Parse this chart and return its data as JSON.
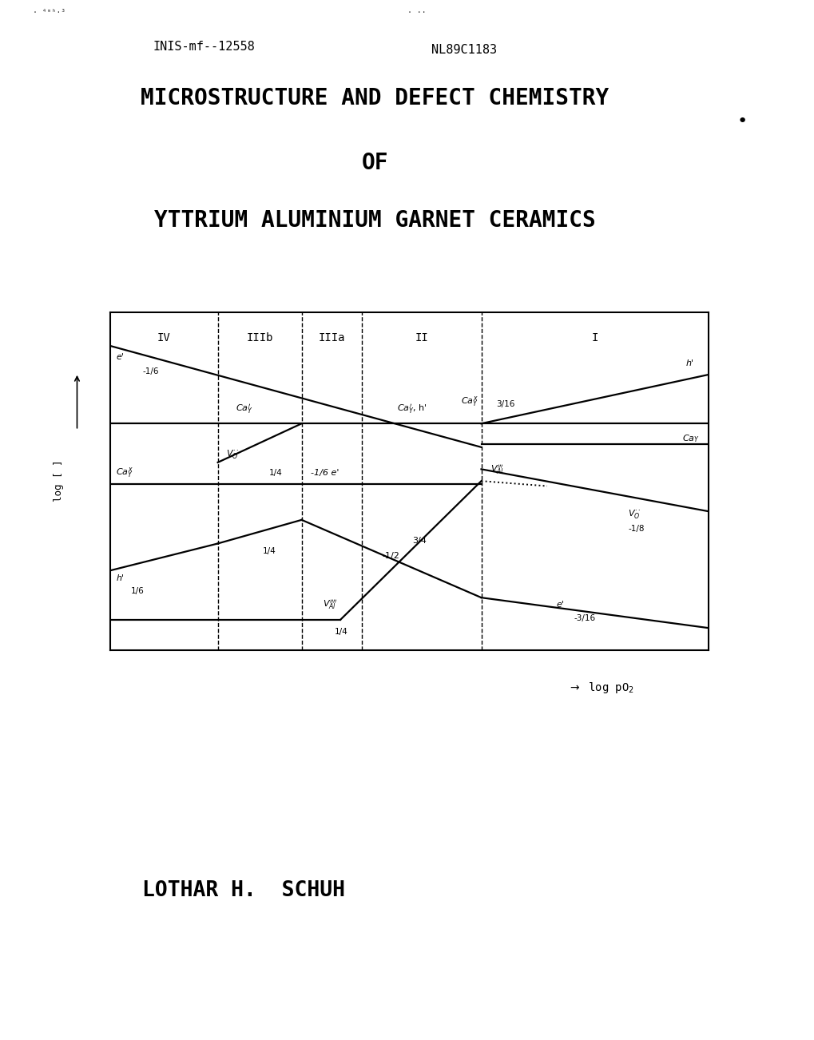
{
  "title_line1": "MICROSTRUCTURE AND DEFECT CHEMISTRY",
  "title_line2": "OF",
  "title_line3": "YTTRIUM ALUMINIUM GARNET CERAMICS",
  "ref1": "INIS-mf--12558",
  "ref2": "NL89C1183",
  "author": "LOTHAR H.  SCHUH",
  "bg_color": "#ffffff",
  "plot_bg": "#ffffff",
  "regions": [
    "IV",
    "IIIb",
    "IIIa",
    "II",
    "I"
  ],
  "region_boundaries": [
    0.18,
    0.32,
    0.42,
    0.62
  ],
  "ylabel": "log [ ]",
  "xlabel": "log pO2"
}
